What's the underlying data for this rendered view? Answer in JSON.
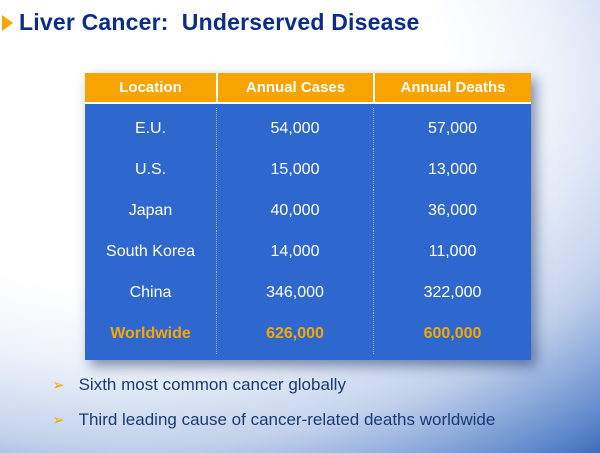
{
  "slide": {
    "title": "Liver Cancer:  Underserved Disease",
    "bullets": [
      "Sixth most common cancer globally",
      "Third leading cause of cancer-related deaths worldwide"
    ]
  },
  "table": {
    "headers": [
      "Location",
      "Annual Cases",
      "Annual Deaths"
    ],
    "rows": [
      {
        "location": "E.U.",
        "cases": "54,000",
        "deaths": "57,000",
        "highlight": false
      },
      {
        "location": "U.S.",
        "cases": "15,000",
        "deaths": "13,000",
        "highlight": false
      },
      {
        "location": "Japan",
        "cases": "40,000",
        "deaths": "36,000",
        "highlight": false
      },
      {
        "location": "South Korea",
        "cases": "14,000",
        "deaths": "11,000",
        "highlight": false
      },
      {
        "location": "China",
        "cases": "346,000",
        "deaths": "322,000",
        "highlight": false
      },
      {
        "location": "Worldwide",
        "cases": "626,000",
        "deaths": "600,000",
        "highlight": true
      }
    ]
  },
  "icons": {
    "bullet_arrow": "➢"
  },
  "colors": {
    "accent_orange": "#F7A800",
    "table_blue": "#2E68CF",
    "title_navy": "#0B2C8D",
    "bullet_navy": "#1A3A75"
  }
}
